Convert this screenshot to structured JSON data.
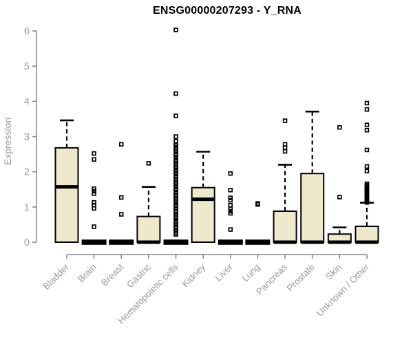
{
  "chart_data": {
    "type": "boxplot",
    "title": "ENSG00000207293 - Y_RNA",
    "ylabel": "Expression",
    "xlabel": "",
    "ylim": [
      0,
      6
    ],
    "yticks": [
      0,
      1,
      2,
      3,
      4,
      5,
      6
    ],
    "grid": "off",
    "legend": "none",
    "box_fill": "#EEE8CD",
    "box_stroke": "#000000",
    "axis_color": "#8a8a8a",
    "tick_label_color": "#9a9a9a",
    "title_color": "#000000",
    "categories": [
      "Bladder",
      "Brain",
      "Breast",
      "Gastric",
      "Hematopoietic cells",
      "Kidney",
      "Liver",
      "Lung",
      "Pancreas",
      "Prostate",
      "Skin",
      "Unknown / Other"
    ],
    "series": [
      {
        "name": "Bladder",
        "whisker_low": 0,
        "q1": 0,
        "median": 1.57,
        "q3": 2.68,
        "whisker_high": 3.46,
        "outliers": []
      },
      {
        "name": "Brain",
        "whisker_low": 0,
        "q1": 0,
        "median": 0,
        "q3": 0,
        "whisker_high": 0,
        "outliers": [
          2.52,
          2.35,
          1.52,
          1.45,
          1.38,
          1.13,
          1.05,
          0.96,
          0.44
        ]
      },
      {
        "name": "Breast",
        "whisker_low": 0,
        "q1": 0,
        "median": 0,
        "q3": 0,
        "whisker_high": 0,
        "outliers": [
          2.78,
          1.27,
          0.79
        ]
      },
      {
        "name": "Gastric",
        "whisker_low": 0,
        "q1": 0,
        "median": 0,
        "q3": 0.73,
        "whisker_high": 1.57,
        "outliers": [
          2.24
        ]
      },
      {
        "name": "Hematopoietic cells",
        "whisker_low": 0,
        "q1": 0,
        "median": 0,
        "q3": 0,
        "whisker_high": 0,
        "outliers": [
          6.03,
          4.22,
          3.59,
          3.0,
          2.87,
          2.78,
          2.74,
          2.69,
          2.65,
          2.6,
          2.56,
          2.51,
          2.47,
          2.42,
          2.38,
          2.33,
          2.29,
          2.24,
          2.2,
          2.15,
          2.11,
          2.06,
          2.02,
          1.97,
          1.93,
          1.88,
          1.84,
          1.79,
          1.75,
          1.7,
          1.66,
          1.61,
          1.57,
          1.52,
          1.48,
          1.43,
          1.39,
          1.34,
          1.3,
          1.25,
          1.21,
          1.16,
          1.12,
          1.07,
          1.03,
          0.98,
          0.94,
          0.89,
          0.85,
          0.8,
          0.76,
          0.71,
          0.67,
          0.62,
          0.58,
          0.53,
          0.49,
          0.44,
          0.4,
          0.35,
          0.31,
          0.26,
          0.22
        ]
      },
      {
        "name": "Kidney",
        "whisker_low": 0,
        "q1": 0,
        "median": 1.22,
        "q3": 1.55,
        "whisker_high": 2.57,
        "outliers": []
      },
      {
        "name": "Liver",
        "whisker_low": 0,
        "q1": 0,
        "median": 0,
        "q3": 0,
        "whisker_high": 0,
        "outliers": [
          1.95,
          1.48,
          1.26,
          1.19,
          1.05,
          0.95,
          0.88,
          0.82,
          0.36
        ]
      },
      {
        "name": "Lung",
        "whisker_low": 0,
        "q1": 0,
        "median": 0,
        "q3": 0,
        "whisker_high": 0,
        "outliers": [
          1.1,
          1.07
        ]
      },
      {
        "name": "Pancreas",
        "whisker_low": 0,
        "q1": 0,
        "median": 0,
        "q3": 0.88,
        "whisker_high": 2.2,
        "outliers": [
          3.45,
          2.78,
          2.68,
          2.58
        ]
      },
      {
        "name": "Prostate",
        "whisker_low": 0,
        "q1": 0,
        "median": 0,
        "q3": 1.95,
        "whisker_high": 3.71,
        "outliers": []
      },
      {
        "name": "Skin",
        "whisker_low": 0,
        "q1": 0,
        "median": 0,
        "q3": 0.23,
        "whisker_high": 0.42,
        "outliers": [
          3.26,
          1.28
        ]
      },
      {
        "name": "Unknown / Other",
        "whisker_low": 0,
        "q1": 0,
        "median": 0,
        "q3": 0.45,
        "whisker_high": 1.12,
        "outliers": [
          3.95,
          3.77,
          3.33,
          3.18,
          2.62,
          2.15,
          2.02,
          1.66,
          1.62,
          1.58,
          1.54,
          1.5,
          1.46,
          1.43,
          1.39,
          1.35,
          1.31,
          1.28,
          1.24,
          1.2,
          1.16,
          1.13
        ]
      }
    ]
  }
}
